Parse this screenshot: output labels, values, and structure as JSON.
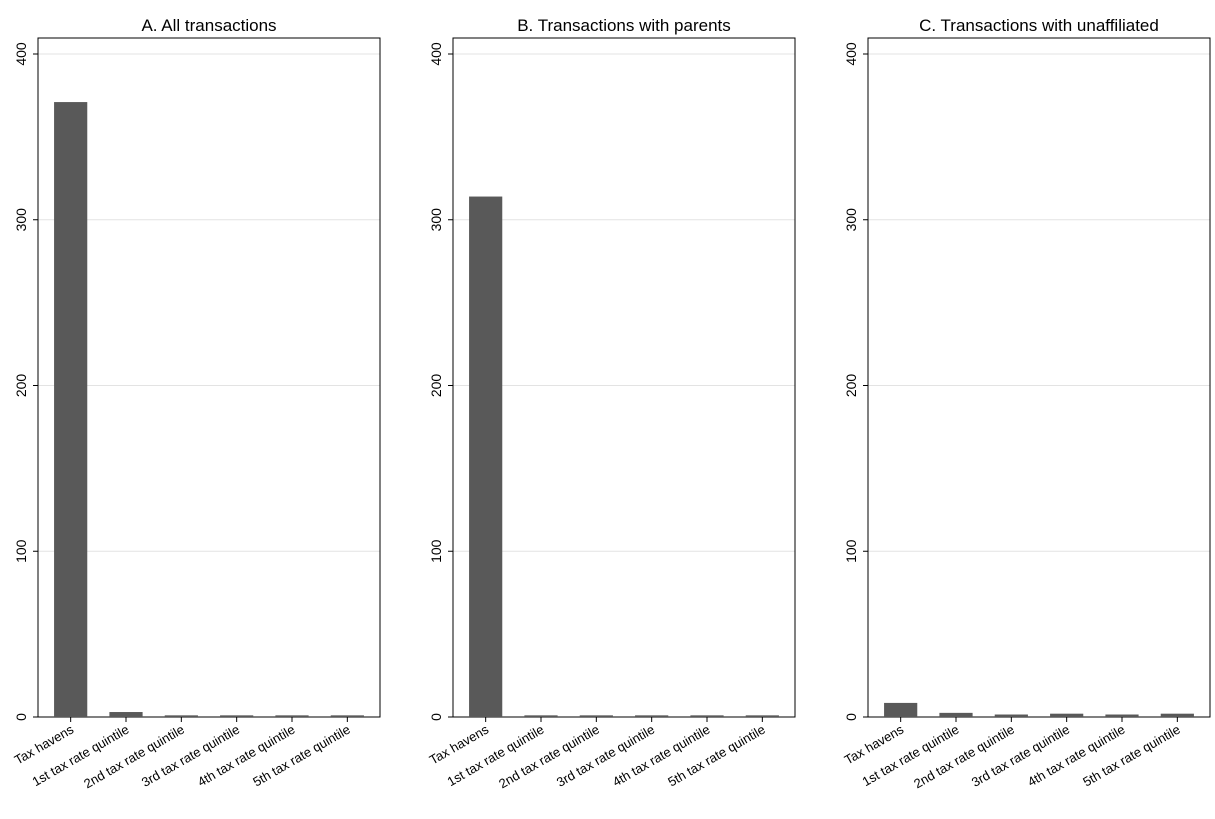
{
  "chart_data": [
    {
      "type": "bar",
      "title": "A. All transactions",
      "categories": [
        "Tax havens",
        "1st tax rate quintile",
        "2nd tax rate quintile",
        "3rd tax rate quintile",
        "4th tax rate quintile",
        "5th tax rate quintile"
      ],
      "values": [
        371,
        3,
        1,
        1,
        1,
        1
      ],
      "ylim": [
        0,
        400
      ],
      "yticks": [
        0,
        100,
        200,
        300,
        400
      ],
      "grid": true,
      "bar_color": "#595959"
    },
    {
      "type": "bar",
      "title": "B. Transactions with parents",
      "categories": [
        "Tax havens",
        "1st tax rate quintile",
        "2nd tax rate quintile",
        "3rd tax rate quintile",
        "4th tax rate quintile",
        "5th tax rate quintile"
      ],
      "values": [
        314,
        1,
        1,
        1,
        1,
        1
      ],
      "ylim": [
        0,
        400
      ],
      "yticks": [
        0,
        100,
        200,
        300,
        400
      ],
      "grid": true,
      "bar_color": "#595959"
    },
    {
      "type": "bar",
      "title": "C. Transactions with unaffiliated",
      "categories": [
        "Tax havens",
        "1st tax rate quintile",
        "2nd tax rate quintile",
        "3rd tax rate quintile",
        "4th tax rate quintile",
        "5th tax rate quintile"
      ],
      "values": [
        8.5,
        2.5,
        1.5,
        2,
        1.5,
        2
      ],
      "ylim": [
        0,
        400
      ],
      "yticks": [
        0,
        100,
        200,
        300,
        400
      ],
      "grid": true,
      "bar_color": "#595959"
    }
  ]
}
